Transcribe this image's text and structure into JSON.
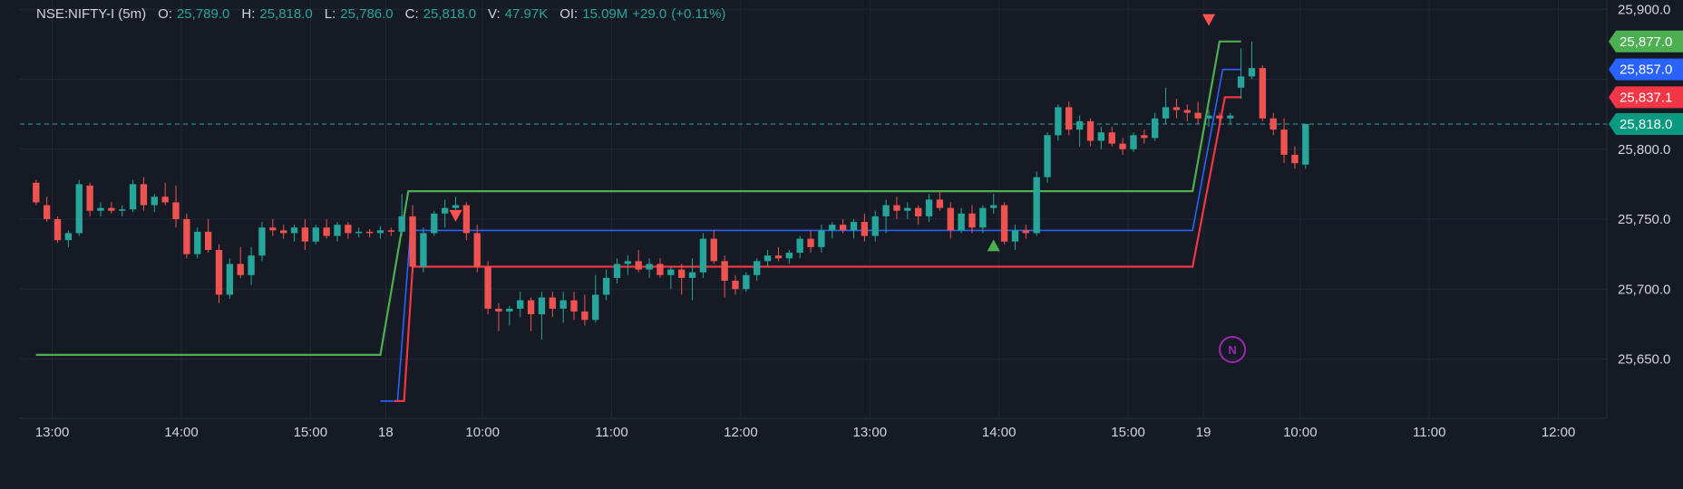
{
  "legend": {
    "symbol": "NSE:NIFTY-I (5m)",
    "o_label": "O:",
    "o": "25,789.0",
    "h_label": "H:",
    "h": "25,818.0",
    "l_label": "L:",
    "l": "25,786.0",
    "c_label": "C:",
    "c": "25,818.0",
    "v_label": "V:",
    "v": "47.97K",
    "oi_label": "OI:",
    "oi": "15.09M",
    "change": "+29.0",
    "change_pct": "(+0.11%)"
  },
  "colors": {
    "background": "#161a25",
    "grid": "#232733",
    "up": "#26a69a",
    "down": "#ef5350",
    "band_upper": "#4caf50",
    "band_mid": "#2962ff",
    "band_lower": "#f23645",
    "last_price_line": "#26a69a",
    "axis_text": "#d1d4dc",
    "marker_n": "#9c27b0"
  },
  "price_tags": [
    {
      "text": "25,877.0",
      "value": 25877,
      "color": "#4caf50"
    },
    {
      "text": "25,857.0",
      "value": 25857,
      "color": "#2962ff"
    },
    {
      "text": "25,837.1",
      "value": 25837.1,
      "color": "#f23645"
    },
    {
      "text": "25,818.0",
      "value": 25818,
      "color": "#089981"
    }
  ],
  "marker_n_label": "N",
  "chart_data": {
    "type": "candlestick",
    "title": "NSE:NIFTY-I (5m)",
    "ylim": [
      25620,
      25910
    ],
    "y_ticks": [
      {
        "value": 25900,
        "label": "25,900.0"
      },
      {
        "value": 25800,
        "label": "25,800.0"
      },
      {
        "value": 25750,
        "label": "25,750.0"
      },
      {
        "value": 25700,
        "label": "25,700.0"
      },
      {
        "value": 25650,
        "label": "25,650.0"
      }
    ],
    "x_ticks": [
      {
        "bar": 1.5,
        "label": "13:00"
      },
      {
        "bar": 13.5,
        "label": "14:00"
      },
      {
        "bar": 25.5,
        "label": "15:00"
      },
      {
        "bar": 32.5,
        "label": "18"
      },
      {
        "bar": 41.5,
        "label": "10:00"
      },
      {
        "bar": 53.5,
        "label": "11:00"
      },
      {
        "bar": 65.5,
        "label": "12:00"
      },
      {
        "bar": 77.5,
        "label": "13:00"
      },
      {
        "bar": 89.5,
        "label": "14:00"
      },
      {
        "bar": 101.5,
        "label": "15:00"
      },
      {
        "bar": 108.5,
        "label": "19"
      },
      {
        "bar": 117.5,
        "label": "10:00"
      },
      {
        "bar": 129.5,
        "label": "11:00"
      },
      {
        "bar": 141.5,
        "label": "12:00"
      }
    ],
    "x_range": [
      -1.5,
      146
    ],
    "candles": [
      [
        25776,
        25778,
        25760,
        25762
      ],
      [
        25760,
        25766,
        25748,
        25750
      ],
      [
        25750,
        25752,
        25733,
        25735
      ],
      [
        25735,
        25742,
        25730,
        25740
      ],
      [
        25740,
        25778,
        25738,
        25775
      ],
      [
        25774,
        25776,
        25752,
        25756
      ],
      [
        25756,
        25762,
        25752,
        25758
      ],
      [
        25758,
        25762,
        25754,
        25756
      ],
      [
        25756,
        25760,
        25752,
        25757
      ],
      [
        25757,
        25778,
        25755,
        25775
      ],
      [
        25775,
        25780,
        25756,
        25760
      ],
      [
        25760,
        25768,
        25755,
        25766
      ],
      [
        25766,
        25776,
        25760,
        25762
      ],
      [
        25762,
        25774,
        25744,
        25750
      ],
      [
        25750,
        25754,
        25722,
        25725
      ],
      [
        25725,
        25744,
        25722,
        25741
      ],
      [
        25741,
        25750,
        25726,
        25728
      ],
      [
        25728,
        25732,
        25690,
        25696
      ],
      [
        25696,
        25722,
        25693,
        25718
      ],
      [
        25718,
        25730,
        25708,
        25710
      ],
      [
        25710,
        25730,
        25703,
        25724
      ],
      [
        25724,
        25748,
        25720,
        25744
      ],
      [
        25744,
        25750,
        25738,
        25742
      ],
      [
        25742,
        25746,
        25736,
        25740
      ],
      [
        25740,
        25746,
        25734,
        25744
      ],
      [
        25744,
        25750,
        25728,
        25734
      ],
      [
        25734,
        25746,
        25732,
        25744
      ],
      [
        25744,
        25750,
        25736,
        25738
      ],
      [
        25738,
        25748,
        25734,
        25746
      ],
      [
        25746,
        25748,
        25736,
        25740
      ],
      [
        25740,
        25744,
        25737,
        25741
      ],
      [
        25741,
        25743,
        25737,
        25740
      ],
      [
        25740,
        25745,
        25736,
        25742
      ],
      [
        25742,
        25744,
        25738,
        25741
      ],
      [
        25741,
        25768,
        25738,
        25752
      ],
      [
        25752,
        25760,
        25712,
        25716
      ],
      [
        25716,
        25744,
        25712,
        25740
      ],
      [
        25740,
        25756,
        25738,
        25754
      ],
      [
        25754,
        25764,
        25744,
        25758
      ],
      [
        25758,
        25766,
        25752,
        25760
      ],
      [
        25760,
        25762,
        25735,
        25740
      ],
      [
        25740,
        25746,
        25712,
        25716
      ],
      [
        25716,
        25720,
        25682,
        25686
      ],
      [
        25686,
        25690,
        25670,
        25684
      ],
      [
        25684,
        25688,
        25674,
        25686
      ],
      [
        25686,
        25698,
        25680,
        25692
      ],
      [
        25692,
        25694,
        25670,
        25682
      ],
      [
        25682,
        25698,
        25664,
        25694
      ],
      [
        25694,
        25698,
        25680,
        25686
      ],
      [
        25686,
        25698,
        25676,
        25692
      ],
      [
        25692,
        25698,
        25678,
        25684
      ],
      [
        25684,
        25696,
        25674,
        25678
      ],
      [
        25678,
        25710,
        25676,
        25696
      ],
      [
        25696,
        25714,
        25692,
        25708
      ],
      [
        25708,
        25722,
        25704,
        25718
      ],
      [
        25718,
        25724,
        25710,
        25720
      ],
      [
        25720,
        25728,
        25712,
        25714
      ],
      [
        25714,
        25722,
        25708,
        25718
      ],
      [
        25718,
        25722,
        25708,
        25710
      ],
      [
        25710,
        25716,
        25700,
        25714
      ],
      [
        25714,
        25718,
        25696,
        25708
      ],
      [
        25708,
        25722,
        25692,
        25712
      ],
      [
        25712,
        25740,
        25708,
        25736
      ],
      [
        25736,
        25742,
        25718,
        25720
      ],
      [
        25720,
        25724,
        25694,
        25706
      ],
      [
        25706,
        25710,
        25696,
        25700
      ],
      [
        25700,
        25712,
        25698,
        25710
      ],
      [
        25710,
        25722,
        25706,
        25720
      ],
      [
        25720,
        25728,
        25716,
        25724
      ],
      [
        25724,
        25730,
        25720,
        25722
      ],
      [
        25722,
        25728,
        25718,
        25726
      ],
      [
        25726,
        25738,
        25722,
        25736
      ],
      [
        25736,
        25742,
        25726,
        25730
      ],
      [
        25730,
        25746,
        25726,
        25742
      ],
      [
        25742,
        25748,
        25736,
        25746
      ],
      [
        25746,
        25750,
        25740,
        25742
      ],
      [
        25742,
        25750,
        25736,
        25748
      ],
      [
        25748,
        25754,
        25734,
        25738
      ],
      [
        25738,
        25756,
        25734,
        25752
      ],
      [
        25752,
        25764,
        25740,
        25760
      ],
      [
        25760,
        25766,
        25750,
        25756
      ],
      [
        25756,
        25762,
        25750,
        25758
      ],
      [
        25758,
        25760,
        25746,
        25752
      ],
      [
        25752,
        25768,
        25748,
        25764
      ],
      [
        25764,
        25770,
        25756,
        25758
      ],
      [
        25758,
        25762,
        25736,
        25742
      ],
      [
        25742,
        25758,
        25740,
        25754
      ],
      [
        25754,
        25760,
        25740,
        25744
      ],
      [
        25744,
        25760,
        25740,
        25758
      ],
      [
        25758,
        25768,
        25754,
        25760
      ],
      [
        25760,
        25762,
        25732,
        25734
      ],
      [
        25734,
        25746,
        25728,
        25742
      ],
      [
        25742,
        25746,
        25736,
        25740
      ],
      [
        25740,
        25784,
        25738,
        25780
      ],
      [
        25780,
        25812,
        25776,
        25810
      ],
      [
        25810,
        25832,
        25806,
        25830
      ],
      [
        25830,
        25834,
        25810,
        25814
      ],
      [
        25814,
        25824,
        25802,
        25820
      ],
      [
        25820,
        25822,
        25802,
        25806
      ],
      [
        25806,
        25816,
        25800,
        25812
      ],
      [
        25812,
        25816,
        25802,
        25804
      ],
      [
        25804,
        25808,
        25796,
        25800
      ],
      [
        25800,
        25812,
        25798,
        25810
      ],
      [
        25810,
        25814,
        25804,
        25808
      ],
      [
        25808,
        25826,
        25806,
        25822
      ],
      [
        25822,
        25844,
        25818,
        25830
      ],
      [
        25830,
        25836,
        25822,
        25828
      ],
      [
        25828,
        25832,
        25820,
        25826
      ],
      [
        25826,
        25834,
        25818,
        25822
      ],
      [
        25822,
        25828,
        25816,
        25824
      ],
      [
        25824,
        25826,
        25818,
        25822
      ],
      [
        25822,
        25826,
        25818,
        25824
      ],
      [
        25844,
        25872,
        25836,
        25852
      ],
      [
        25852,
        25877,
        25850,
        25858
      ],
      [
        25858,
        25860,
        25820,
        25822
      ],
      [
        25822,
        25826,
        25810,
        25814
      ],
      [
        25814,
        25822,
        25790,
        25796
      ],
      [
        25796,
        25802,
        25786,
        25790
      ],
      [
        25789,
        25818,
        25786,
        25818
      ]
    ],
    "bands": {
      "upper": [
        [
          0,
          25653
        ],
        [
          32,
          25653
        ],
        [
          34.6,
          25770
        ],
        [
          107.5,
          25770
        ],
        [
          110,
          25877
        ],
        [
          112,
          25877
        ]
      ],
      "mid": [
        [
          32,
          25620
        ],
        [
          33.6,
          25620
        ],
        [
          34.8,
          25742
        ],
        [
          107.5,
          25742
        ],
        [
          110.3,
          25857
        ],
        [
          112,
          25857
        ]
      ],
      "lower": [
        [
          33.3,
          25620
        ],
        [
          34.2,
          25620
        ],
        [
          35,
          25716
        ],
        [
          107.5,
          25716
        ],
        [
          110.5,
          25837.1
        ],
        [
          112,
          25837.1
        ]
      ]
    },
    "signals": [
      {
        "type": "sell",
        "bar": 39,
        "value": 25752
      },
      {
        "type": "buy",
        "bar": 89,
        "value": 25731
      },
      {
        "type": "sell",
        "bar": 109,
        "value": 25892
      }
    ],
    "last_price": 25818,
    "n_marker": {
      "bar": 111.2,
      "value": 25640
    }
  }
}
